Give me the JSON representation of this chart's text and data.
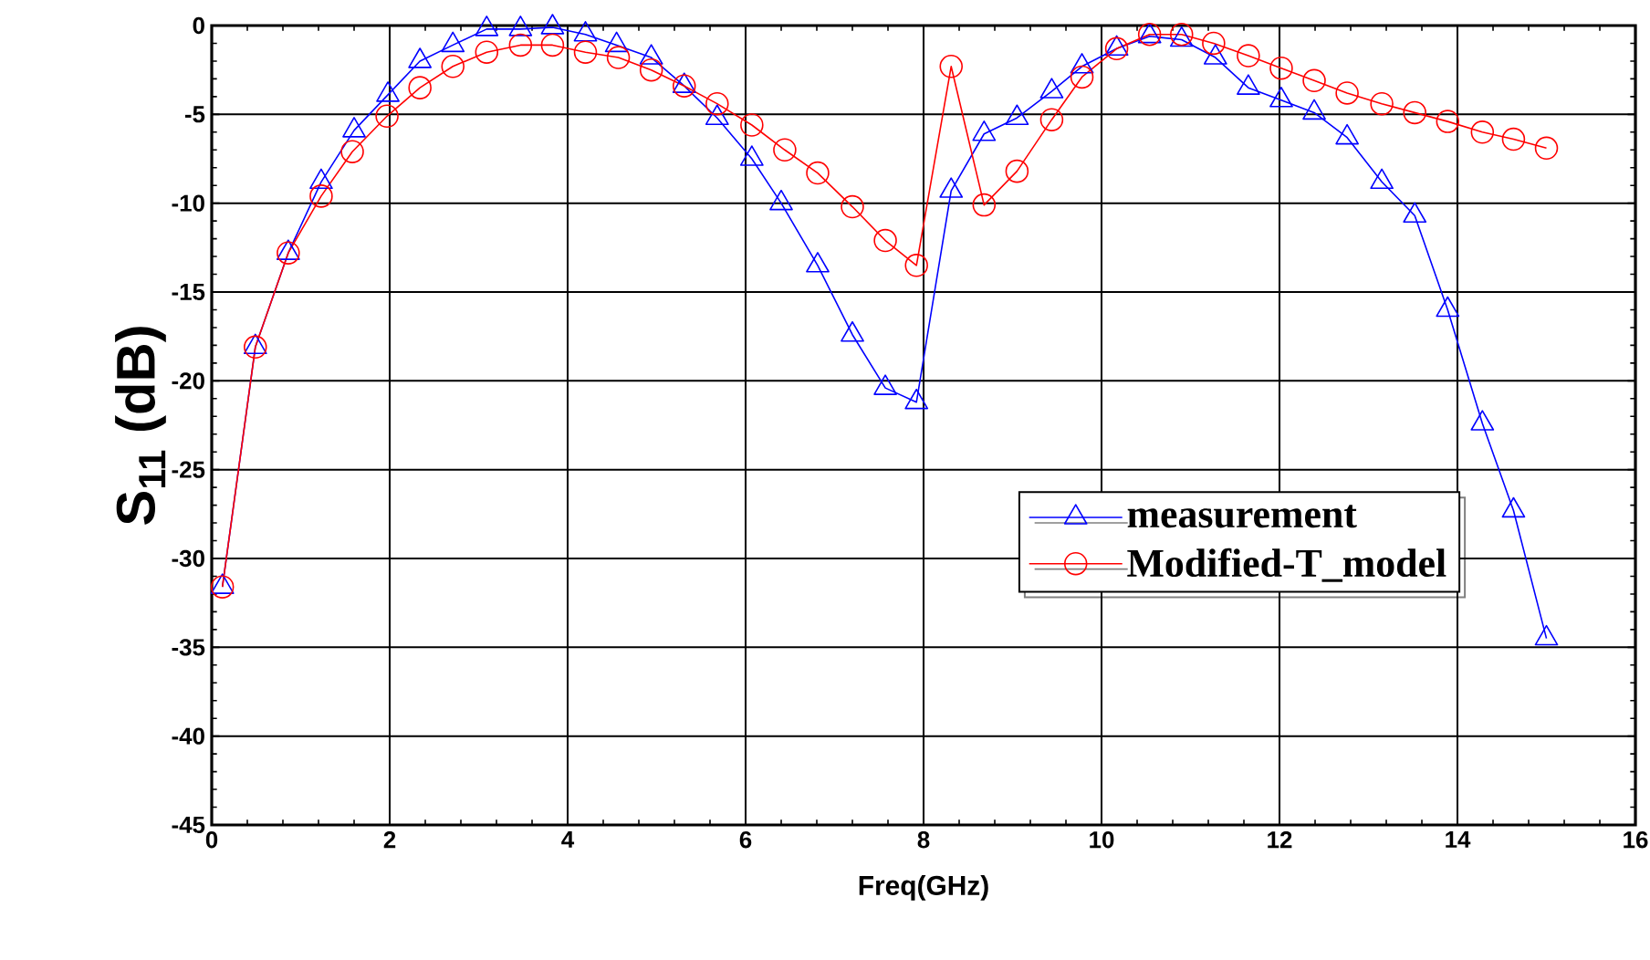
{
  "chart_data": {
    "type": "line",
    "xlabel": "Freq(GHz)",
    "ylabel": "S$_{11}$ (dB)",
    "xlim": [
      0,
      16
    ],
    "ylim": [
      -45,
      0
    ],
    "xticks": [
      0,
      2,
      4,
      6,
      8,
      10,
      12,
      14,
      16
    ],
    "yticks": [
      -45,
      -40,
      -35,
      -30,
      -25,
      -20,
      -15,
      -10,
      -5,
      0
    ],
    "grid": true,
    "legend": "right",
    "line_style": "solid",
    "series": [
      {
        "name": "measurement",
        "color": "#0000ff",
        "marker": "triangle",
        "x": [
          0.12,
          0.49,
          0.86,
          1.23,
          1.6,
          1.98,
          2.34,
          2.71,
          3.09,
          3.47,
          3.83,
          4.2,
          4.55,
          4.94,
          5.31,
          5.68,
          6.07,
          6.4,
          6.81,
          7.2,
          7.57,
          7.92,
          8.31,
          8.68,
          9.05,
          9.44,
          9.78,
          10.17,
          10.54,
          10.9,
          11.28,
          11.65,
          12.02,
          12.39,
          12.76,
          13.15,
          13.52,
          13.89,
          14.28,
          14.63,
          15.0
        ],
        "values": [
          -31.6,
          -18.1,
          -12.8,
          -8.8,
          -5.9,
          -3.9,
          -2.0,
          -1.1,
          -0.2,
          -0.2,
          -0.1,
          -0.5,
          -1.1,
          -1.8,
          -3.4,
          -5.2,
          -7.5,
          -10.0,
          -13.5,
          -17.4,
          -20.4,
          -21.2,
          -9.3,
          -6.1,
          -5.2,
          -3.7,
          -2.3,
          -1.3,
          -0.6,
          -0.8,
          -1.8,
          -3.5,
          -4.2,
          -4.9,
          -6.3,
          -8.8,
          -10.7,
          -16.0,
          -22.4,
          -27.3,
          -34.5
        ]
      },
      {
        "name": "Modified-T_model",
        "color": "#ff0000",
        "marker": "circle",
        "x": [
          0.12,
          0.49,
          0.86,
          1.23,
          1.58,
          1.97,
          2.34,
          2.71,
          3.09,
          3.47,
          3.83,
          4.2,
          4.57,
          4.94,
          5.31,
          5.68,
          6.07,
          6.44,
          6.81,
          7.2,
          7.57,
          7.92,
          8.31,
          8.68,
          9.05,
          9.44,
          9.78,
          10.17,
          10.54,
          10.9,
          11.26,
          11.65,
          12.02,
          12.39,
          12.76,
          13.15,
          13.52,
          13.89,
          14.28,
          14.63,
          15.0
        ],
        "values": [
          -31.6,
          -18.1,
          -12.8,
          -9.6,
          -7.1,
          -5.1,
          -3.5,
          -2.3,
          -1.5,
          -1.1,
          -1.1,
          -1.5,
          -1.8,
          -2.5,
          -3.4,
          -4.4,
          -5.6,
          -7.0,
          -8.3,
          -10.2,
          -12.1,
          -13.5,
          -2.3,
          -10.1,
          -8.2,
          -5.3,
          -2.9,
          -1.3,
          -0.5,
          -0.5,
          -1.0,
          -1.7,
          -2.4,
          -3.1,
          -3.8,
          -4.4,
          -4.9,
          -5.4,
          -6.0,
          -6.4,
          -6.9
        ]
      }
    ]
  }
}
